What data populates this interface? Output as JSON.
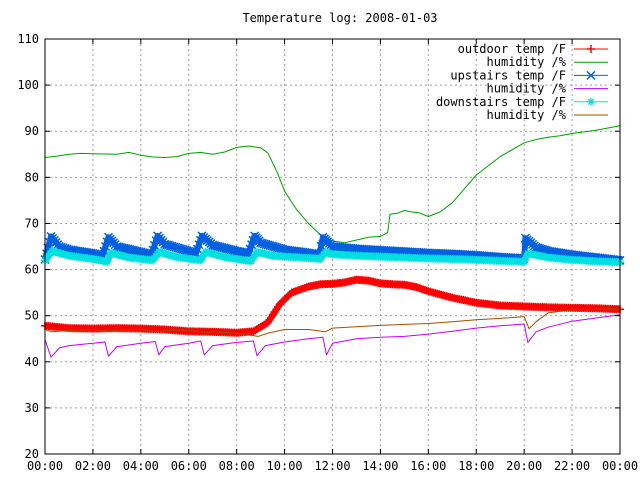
{
  "chart_data": {
    "type": "line",
    "title": "Temperature log: 2008-01-03",
    "xlabel": "",
    "ylabel": "",
    "xlim": [
      "00:00",
      "24:00"
    ],
    "ylim": [
      20,
      110
    ],
    "grid": true,
    "legend_position": "top-right",
    "y_ticks": [
      "20",
      "30",
      "40",
      "50",
      "60",
      "70",
      "80",
      "90",
      "100",
      "110"
    ],
    "x_ticks": [
      "00:00",
      "02:00",
      "04:00",
      "06:00",
      "08:00",
      "10:00",
      "12:00",
      "14:00",
      "16:00",
      "18:00",
      "20:00",
      "22:00",
      "00:00"
    ],
    "series": [
      {
        "name": "outdoor temp /F",
        "color": "#ff0000",
        "marker": "plus",
        "thick": true,
        "points": [
          [
            0,
            47.8
          ],
          [
            1,
            47.3
          ],
          [
            2,
            47.2
          ],
          [
            3,
            47.3
          ],
          [
            4,
            47.2
          ],
          [
            5,
            47.0
          ],
          [
            6,
            46.6
          ],
          [
            7,
            46.5
          ],
          [
            8,
            46.3
          ],
          [
            8.7,
            46.6
          ],
          [
            9.3,
            48.5
          ],
          [
            9.8,
            52.5
          ],
          [
            10.3,
            55.0
          ],
          [
            11,
            56.3
          ],
          [
            11.5,
            56.8
          ],
          [
            12,
            56.9
          ],
          [
            12.5,
            57.2
          ],
          [
            13,
            57.8
          ],
          [
            13.5,
            57.6
          ],
          [
            14,
            57.0
          ],
          [
            14.5,
            56.8
          ],
          [
            15,
            56.7
          ],
          [
            15.5,
            56.2
          ],
          [
            16,
            55.3
          ],
          [
            17,
            53.9
          ],
          [
            18,
            52.8
          ],
          [
            19,
            52.2
          ],
          [
            20,
            52.0
          ],
          [
            21,
            51.8
          ],
          [
            22,
            51.7
          ],
          [
            23,
            51.6
          ],
          [
            24,
            51.4
          ]
        ]
      },
      {
        "name": "humidity /%",
        "color": "#00a000",
        "marker": "none",
        "thick": false,
        "points": [
          [
            0,
            84.3
          ],
          [
            0.5,
            84.6
          ],
          [
            1,
            85.0
          ],
          [
            1.5,
            85.2
          ],
          [
            2,
            85.1
          ],
          [
            3,
            85.0
          ],
          [
            3.5,
            85.4
          ],
          [
            4,
            84.8
          ],
          [
            4.5,
            84.4
          ],
          [
            5,
            84.3
          ],
          [
            5.5,
            84.5
          ],
          [
            6,
            85.2
          ],
          [
            6.5,
            85.4
          ],
          [
            7,
            85.0
          ],
          [
            7.5,
            85.5
          ],
          [
            8,
            86.5
          ],
          [
            8.5,
            86.8
          ],
          [
            9,
            86.4
          ],
          [
            9.3,
            85.3
          ],
          [
            9.7,
            81.0
          ],
          [
            10,
            77.0
          ],
          [
            10.5,
            73.0
          ],
          [
            11,
            70.0
          ],
          [
            11.5,
            67.5
          ],
          [
            12,
            66.2
          ],
          [
            12.5,
            65.8
          ],
          [
            13,
            66.4
          ],
          [
            13.5,
            67.0
          ],
          [
            14,
            67.2
          ],
          [
            14.3,
            68.0
          ],
          [
            14.4,
            72.0
          ],
          [
            14.7,
            72.2
          ],
          [
            15,
            72.8
          ],
          [
            15.3,
            72.5
          ],
          [
            15.6,
            72.3
          ],
          [
            16,
            71.5
          ],
          [
            16.5,
            72.5
          ],
          [
            17,
            74.5
          ],
          [
            17.5,
            77.5
          ],
          [
            18,
            80.5
          ],
          [
            19,
            84.5
          ],
          [
            20,
            87.5
          ],
          [
            20.5,
            88.2
          ],
          [
            21,
            88.7
          ],
          [
            21.5,
            89.0
          ],
          [
            22,
            89.5
          ],
          [
            23,
            90.2
          ],
          [
            23.5,
            90.7
          ],
          [
            24,
            91.2
          ]
        ]
      },
      {
        "name": "upstairs temp /F",
        "color": "#0060e0",
        "marker": "x",
        "thick": true,
        "points": [
          [
            0,
            62.2
          ],
          [
            0.25,
            67.2
          ],
          [
            0.6,
            65.0
          ],
          [
            1,
            64.3
          ],
          [
            2,
            63.5
          ],
          [
            2.4,
            63.0
          ],
          [
            2.65,
            67.0
          ],
          [
            3,
            65.0
          ],
          [
            4,
            63.8
          ],
          [
            4.45,
            63.2
          ],
          [
            4.7,
            67.3
          ],
          [
            5,
            65.5
          ],
          [
            6,
            64.0
          ],
          [
            6.3,
            63.5
          ],
          [
            6.55,
            67.3
          ],
          [
            7,
            65.3
          ],
          [
            8,
            64.0
          ],
          [
            8.5,
            63.5
          ],
          [
            8.75,
            67.3
          ],
          [
            9,
            65.8
          ],
          [
            10,
            64.3
          ],
          [
            11,
            63.6
          ],
          [
            11.45,
            63.2
          ],
          [
            11.6,
            67.0
          ],
          [
            12,
            65.0
          ],
          [
            13,
            64.5
          ],
          [
            14,
            64.2
          ],
          [
            15,
            63.9
          ],
          [
            16,
            63.6
          ],
          [
            17,
            63.4
          ],
          [
            18,
            63.1
          ],
          [
            19,
            62.7
          ],
          [
            20,
            62.4
          ],
          [
            20.05,
            66.8
          ],
          [
            20.5,
            64.8
          ],
          [
            21,
            64.0
          ],
          [
            22,
            63.2
          ],
          [
            23,
            62.6
          ],
          [
            24,
            62.0
          ]
        ]
      },
      {
        "name": "humidity /%",
        "color": "#c000ff",
        "marker": "none",
        "thick": false,
        "points": [
          [
            0,
            44.8
          ],
          [
            0.25,
            41.0
          ],
          [
            0.6,
            43.0
          ],
          [
            1,
            43.5
          ],
          [
            2,
            44.0
          ],
          [
            2.5,
            44.3
          ],
          [
            2.65,
            41.2
          ],
          [
            3,
            43.3
          ],
          [
            4,
            44.0
          ],
          [
            4.6,
            44.4
          ],
          [
            4.75,
            41.5
          ],
          [
            5,
            43.3
          ],
          [
            6,
            44.0
          ],
          [
            6.5,
            44.5
          ],
          [
            6.65,
            41.5
          ],
          [
            7,
            43.5
          ],
          [
            8,
            44.2
          ],
          [
            8.7,
            44.5
          ],
          [
            8.85,
            41.3
          ],
          [
            9.2,
            43.5
          ],
          [
            10,
            44.3
          ],
          [
            11,
            45.0
          ],
          [
            11.6,
            45.3
          ],
          [
            11.75,
            41.5
          ],
          [
            12,
            44.0
          ],
          [
            13,
            45.0
          ],
          [
            14,
            45.3
          ],
          [
            15,
            45.5
          ],
          [
            16,
            46.0
          ],
          [
            17,
            46.6
          ],
          [
            18,
            47.3
          ],
          [
            19,
            47.8
          ],
          [
            20,
            48.2
          ],
          [
            20.15,
            44.2
          ],
          [
            20.5,
            46.5
          ],
          [
            21,
            47.5
          ],
          [
            22,
            48.8
          ],
          [
            23,
            49.5
          ],
          [
            24,
            50.2
          ]
        ]
      },
      {
        "name": "downstairs temp /F",
        "color": "#00e0e0",
        "marker": "star",
        "thick": true,
        "points": [
          [
            0,
            62.0
          ],
          [
            0.3,
            64.0
          ],
          [
            1,
            63.0
          ],
          [
            2,
            62.3
          ],
          [
            2.6,
            61.7
          ],
          [
            2.75,
            63.6
          ],
          [
            3.5,
            62.6
          ],
          [
            4.5,
            62.0
          ],
          [
            4.75,
            63.8
          ],
          [
            5.5,
            62.7
          ],
          [
            6.5,
            62.0
          ],
          [
            6.7,
            63.8
          ],
          [
            7.5,
            62.7
          ],
          [
            8.6,
            61.8
          ],
          [
            8.85,
            63.8
          ],
          [
            9.5,
            63.0
          ],
          [
            10,
            62.8
          ],
          [
            11,
            62.5
          ],
          [
            11.5,
            62.3
          ],
          [
            11.7,
            63.8
          ],
          [
            12,
            63.3
          ],
          [
            13,
            63.0
          ],
          [
            14,
            62.8
          ],
          [
            15,
            62.6
          ],
          [
            16,
            62.4
          ],
          [
            17,
            62.3
          ],
          [
            18,
            62.1
          ],
          [
            19,
            61.9
          ],
          [
            20,
            61.7
          ],
          [
            20.15,
            63.5
          ],
          [
            21,
            62.6
          ],
          [
            22,
            62.1
          ],
          [
            23,
            61.8
          ],
          [
            24,
            61.6
          ]
        ]
      },
      {
        "name": "humidity /%",
        "color": "#a05000",
        "marker": "none",
        "thick": false,
        "points": [
          [
            0,
            47.0
          ],
          [
            0.3,
            46.5
          ],
          [
            1,
            46.8
          ],
          [
            2,
            47.0
          ],
          [
            2.7,
            46.6
          ],
          [
            3,
            46.9
          ],
          [
            4,
            47.0
          ],
          [
            4.8,
            46.5
          ],
          [
            5,
            46.8
          ],
          [
            6,
            46.9
          ],
          [
            6.7,
            46.3
          ],
          [
            7,
            46.5
          ],
          [
            8,
            46.2
          ],
          [
            8.9,
            45.5
          ],
          [
            9.3,
            46.2
          ],
          [
            10,
            47.0
          ],
          [
            11,
            47.0
          ],
          [
            11.7,
            46.5
          ],
          [
            12,
            47.3
          ],
          [
            13,
            47.6
          ],
          [
            14,
            47.9
          ],
          [
            15,
            48.1
          ],
          [
            16,
            48.3
          ],
          [
            17,
            48.7
          ],
          [
            18,
            49.1
          ],
          [
            19,
            49.4
          ],
          [
            20,
            49.8
          ],
          [
            20.2,
            47.2
          ],
          [
            20.5,
            48.7
          ],
          [
            21,
            50.6
          ],
          [
            22,
            51.3
          ],
          [
            23,
            51.4
          ],
          [
            24,
            51.5
          ]
        ]
      }
    ]
  }
}
